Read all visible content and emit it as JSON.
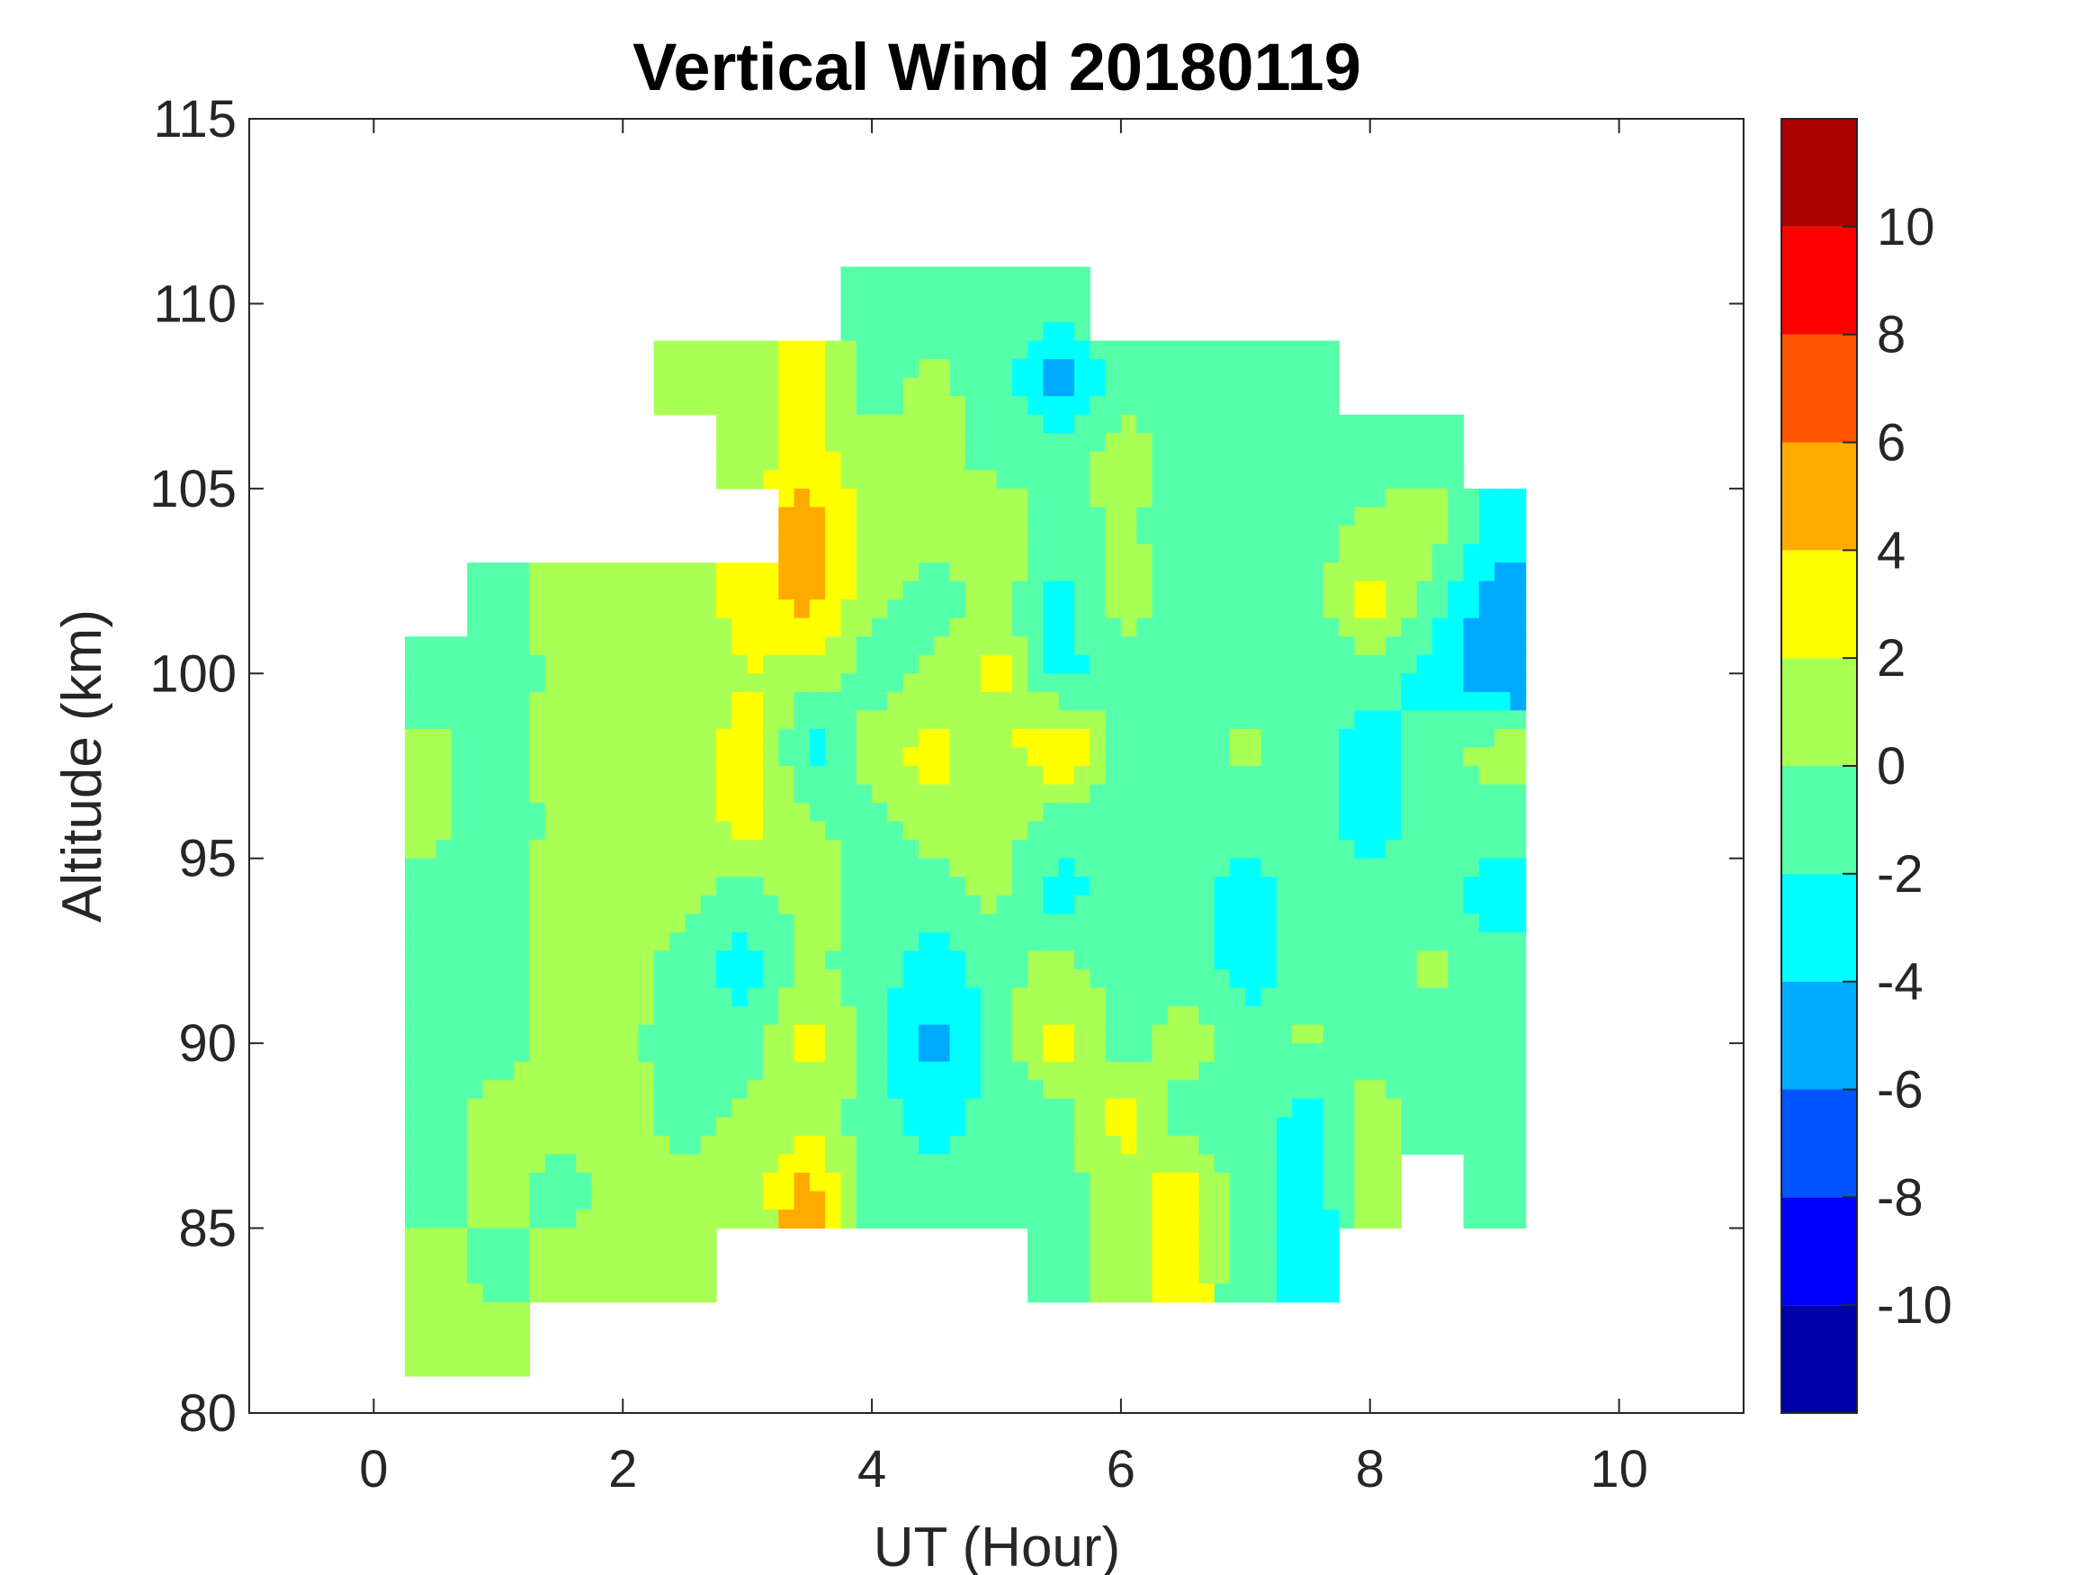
{
  "chart_data": {
    "type": "heatmap",
    "subtype": "filled-contour",
    "title": "Vertical Wind 20180119",
    "xlabel": "UT (Hour)",
    "ylabel": "Altitude (km)",
    "xlim": [
      -1,
      11
    ],
    "ylim": [
      80,
      115
    ],
    "xticks": [
      "0",
      "2",
      "4",
      "6",
      "8",
      "10"
    ],
    "yticks": [
      "80",
      "85",
      "90",
      "95",
      "100",
      "105",
      "110",
      "115"
    ],
    "grid": false,
    "colorbar": {
      "range": [
        -12,
        12
      ],
      "levels": [
        -12,
        -10,
        -8,
        -6,
        -4,
        -2,
        0,
        2,
        4,
        6,
        8,
        10,
        12
      ],
      "tick_labels": [
        "10",
        "8",
        "6",
        "4",
        "2",
        "0",
        "-2",
        "-4",
        "-6",
        "-8",
        "-10"
      ],
      "colors": [
        "#0000aa",
        "#0000ff",
        "#0055ff",
        "#00aaff",
        "#00ffff",
        "#55ffaa",
        "#aaff55",
        "#ffff00",
        "#ffaa00",
        "#ff5500",
        "#ff0000",
        "#aa0000"
      ],
      "placement": "right"
    },
    "x": [
      0.5,
      1.0,
      1.5,
      2.0,
      2.5,
      3.0,
      3.5,
      4.0,
      4.5,
      5.0,
      5.5,
      6.0,
      6.5,
      7.0,
      7.5,
      8.0,
      8.5,
      9.0
    ],
    "y": [
      110,
      108,
      106,
      104,
      102,
      100,
      98,
      96,
      94,
      92,
      90,
      88,
      86,
      84,
      82
    ],
    "z": [
      [
        null,
        null,
        null,
        null,
        null,
        null,
        null,
        -0.5,
        -1,
        -1,
        -1,
        null,
        null,
        null,
        null,
        null,
        null,
        null
      ],
      [
        null,
        null,
        null,
        null,
        1,
        1,
        3,
        -1,
        0.5,
        -1,
        -5,
        -1,
        -0.5,
        -1,
        -1,
        null,
        null,
        null
      ],
      [
        null,
        null,
        null,
        null,
        null,
        1,
        3,
        0.5,
        1,
        -1,
        -1,
        1,
        -1,
        -1,
        -0.5,
        -1,
        -1,
        null
      ],
      [
        null,
        null,
        null,
        null,
        null,
        null,
        5,
        1,
        1,
        2,
        -1,
        0.5,
        -1,
        -1,
        -1,
        0.5,
        1,
        -3
      ],
      [
        null,
        -1,
        1,
        0.5,
        1,
        3,
        5,
        0.5,
        -1,
        1,
        -3,
        1,
        -1,
        -1,
        -1,
        3,
        -1,
        -5
      ],
      [
        -2,
        -1,
        0.5,
        1,
        0.5,
        2,
        1,
        -1,
        0.5,
        3,
        -3,
        -1,
        -1,
        -1,
        -1,
        -1,
        -3,
        -6
      ],
      [
        0.5,
        -1,
        1,
        0.5,
        1,
        3,
        -3,
        1,
        3,
        0.5,
        5,
        -1,
        -1,
        0.5,
        -1,
        -3,
        -1,
        1
      ],
      [
        0.5,
        -1,
        0.5,
        1,
        1,
        3,
        0.5,
        -1,
        1,
        1,
        -1,
        -1,
        -1,
        -1,
        -1,
        -3,
        -1,
        -1
      ],
      [
        -1,
        -1,
        1,
        1,
        0.5,
        -1,
        1,
        -1,
        -1,
        0.5,
        -3,
        -1,
        -1,
        -3,
        -1,
        -1,
        -1,
        -3
      ],
      [
        -1,
        -1,
        1,
        1,
        -1,
        -3,
        0.5,
        -1,
        -3,
        -1,
        1,
        -1,
        -1,
        -3,
        -1,
        -1,
        0.5,
        -1
      ],
      [
        -1,
        -1,
        1,
        0.5,
        -1,
        -1,
        3,
        -1,
        -5,
        -1,
        3,
        -1,
        1,
        -1,
        0.5,
        -1,
        -1,
        -1
      ],
      [
        -1,
        1,
        0.5,
        1,
        -1,
        0.5,
        1,
        -1,
        -3,
        -1,
        -1,
        3,
        -1,
        -1,
        -3,
        1,
        -1,
        -1
      ],
      [
        -1,
        1,
        -1,
        1,
        1,
        1,
        5,
        -1,
        -1,
        -1,
        -1,
        1,
        3,
        -1,
        -3,
        0.5,
        null,
        -1
      ],
      [
        1,
        -1,
        1,
        0.5,
        1,
        null,
        null,
        null,
        null,
        null,
        -1,
        1,
        3,
        -1,
        -3,
        null,
        null,
        null
      ],
      [
        1,
        1,
        null,
        null,
        null,
        null,
        null,
        null,
        null,
        null,
        null,
        null,
        null,
        null,
        null,
        null,
        null,
        null
      ]
    ]
  }
}
